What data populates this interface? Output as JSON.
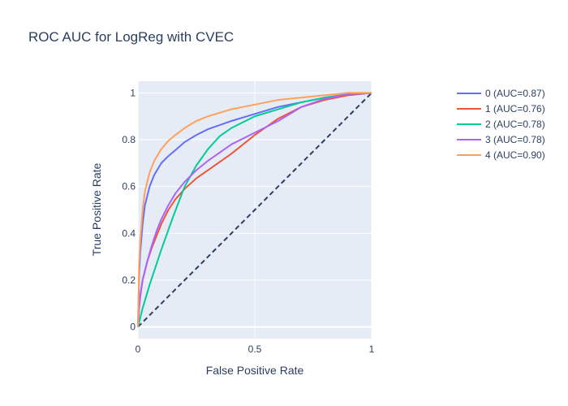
{
  "chart_data": {
    "type": "line",
    "title": "ROC AUC for LogReg with CVEC",
    "xlabel": "False Positive Rate",
    "ylabel": "True Positive Rate",
    "xlim": [
      0,
      1
    ],
    "ylim": [
      -0.05,
      1.05
    ],
    "x_ticks": [
      {
        "value": 0,
        "label": "0"
      },
      {
        "value": 0.5,
        "label": "0.5"
      },
      {
        "value": 1,
        "label": "1"
      }
    ],
    "y_ticks": [
      {
        "value": 0,
        "label": "0"
      },
      {
        "value": 0.2,
        "label": "0.2"
      },
      {
        "value": 0.4,
        "label": "0.4"
      },
      {
        "value": 0.6,
        "label": "0.6"
      },
      {
        "value": 0.8,
        "label": "0.8"
      },
      {
        "value": 1,
        "label": "1"
      }
    ],
    "legend_position": "top-right",
    "grid": true,
    "plot_background": "#e5ecf6",
    "series": [
      {
        "name": "0 (AUC=0.87)",
        "color": "#636efa",
        "x": [
          0,
          0.005,
          0.01,
          0.02,
          0.03,
          0.05,
          0.07,
          0.1,
          0.13,
          0.16,
          0.2,
          0.25,
          0.3,
          0.4,
          0.5,
          0.6,
          0.7,
          0.8,
          0.9,
          1.0
        ],
        "y": [
          0,
          0.22,
          0.32,
          0.44,
          0.52,
          0.6,
          0.65,
          0.7,
          0.73,
          0.755,
          0.79,
          0.82,
          0.845,
          0.88,
          0.91,
          0.94,
          0.96,
          0.98,
          0.99,
          1.0
        ]
      },
      {
        "name": "1 (AUC=0.76)",
        "color": "#ef553b",
        "x": [
          0,
          0.005,
          0.01,
          0.02,
          0.04,
          0.06,
          0.08,
          0.1,
          0.13,
          0.16,
          0.2,
          0.25,
          0.3,
          0.4,
          0.5,
          0.6,
          0.7,
          0.8,
          0.9,
          1.0
        ],
        "y": [
          0,
          0.08,
          0.13,
          0.2,
          0.28,
          0.34,
          0.39,
          0.44,
          0.5,
          0.545,
          0.59,
          0.635,
          0.67,
          0.74,
          0.82,
          0.89,
          0.94,
          0.97,
          0.99,
          1.0
        ]
      },
      {
        "name": "2 (AUC=0.78)",
        "color": "#00cc96",
        "x": [
          0,
          0.02,
          0.05,
          0.1,
          0.15,
          0.2,
          0.25,
          0.3,
          0.35,
          0.4,
          0.5,
          0.6,
          0.7,
          0.8,
          0.9,
          1.0
        ],
        "y": [
          0,
          0.08,
          0.18,
          0.33,
          0.47,
          0.6,
          0.69,
          0.76,
          0.815,
          0.85,
          0.9,
          0.93,
          0.96,
          0.98,
          0.995,
          1.0
        ]
      },
      {
        "name": "3 (AUC=0.78)",
        "color": "#ab63fa",
        "x": [
          0,
          0.005,
          0.01,
          0.02,
          0.04,
          0.06,
          0.08,
          0.1,
          0.13,
          0.16,
          0.2,
          0.25,
          0.3,
          0.4,
          0.5,
          0.6,
          0.7,
          0.8,
          0.9,
          1.0
        ],
        "y": [
          0,
          0.09,
          0.14,
          0.2,
          0.28,
          0.35,
          0.41,
          0.46,
          0.52,
          0.57,
          0.62,
          0.67,
          0.71,
          0.78,
          0.83,
          0.88,
          0.94,
          0.975,
          0.995,
          1.0
        ]
      },
      {
        "name": "4 (AUC=0.90)",
        "color": "#ffa15a",
        "x": [
          0,
          0.005,
          0.01,
          0.02,
          0.03,
          0.05,
          0.07,
          0.1,
          0.13,
          0.16,
          0.2,
          0.25,
          0.3,
          0.4,
          0.5,
          0.6,
          0.7,
          0.8,
          0.9,
          1.0
        ],
        "y": [
          0,
          0.27,
          0.37,
          0.5,
          0.58,
          0.66,
          0.71,
          0.76,
          0.795,
          0.82,
          0.85,
          0.88,
          0.9,
          0.93,
          0.95,
          0.97,
          0.98,
          0.99,
          1.0,
          1.0
        ]
      }
    ],
    "reference_line": {
      "x": [
        0,
        1
      ],
      "y": [
        0,
        1
      ],
      "color": "#2a3f5f",
      "style": "dashed"
    }
  }
}
